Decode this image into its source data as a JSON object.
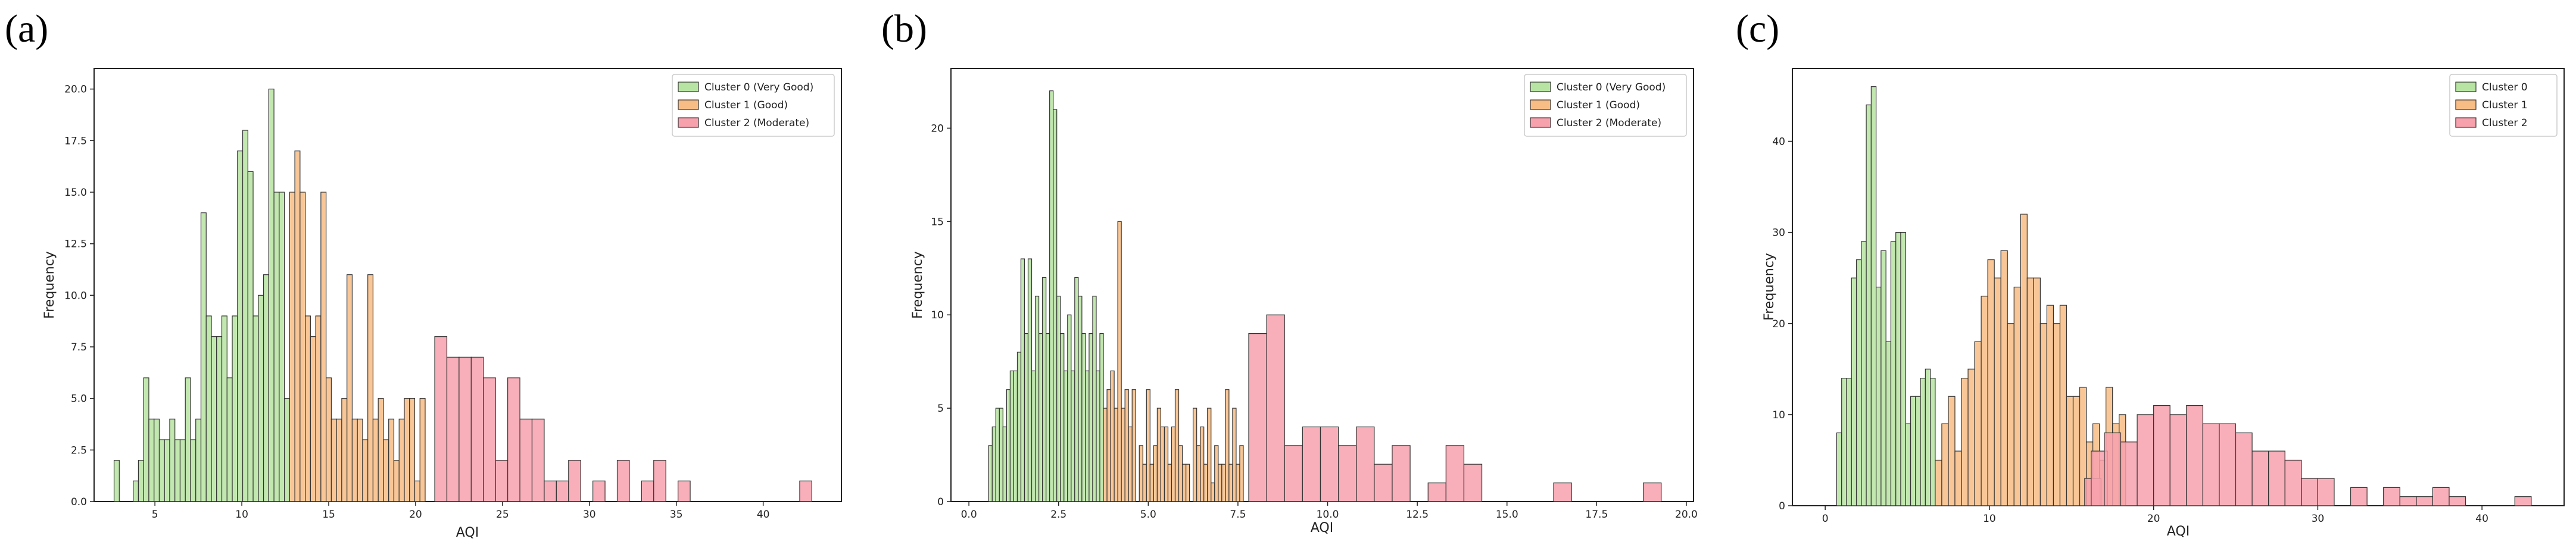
{
  "figure": {
    "panel_labels": [
      "(a)",
      "(b)",
      "(c)"
    ],
    "colors": {
      "cluster0": "#b7e4a2",
      "cluster1": "#f8bd85",
      "cluster2": "#f7a1ad",
      "edge": "#333333"
    }
  },
  "chart_data": [
    {
      "type": "bar",
      "panel": "(a)",
      "xlabel": "AQI",
      "ylabel": "Frequency",
      "xlim": [
        1.5,
        44.5
      ],
      "ylim": [
        0,
        21
      ],
      "xticks": [
        5,
        10,
        15,
        20,
        25,
        30,
        35,
        40
      ],
      "xtick_labels": [
        "5",
        "10",
        "15",
        "20",
        "25",
        "30",
        "35",
        "40"
      ],
      "yticks": [
        0,
        2.5,
        5,
        7.5,
        10,
        12.5,
        15,
        17.5,
        20
      ],
      "ytick_labels": [
        "0.0",
        "2.5",
        "5.0",
        "7.5",
        "10.0",
        "12.5",
        "15.0",
        "17.5",
        "20.0"
      ],
      "legend": {
        "position": "top-right"
      },
      "series": [
        {
          "name": "Cluster 0 (Very Good)",
          "color": "#b7e4a2",
          "bins": [
            [
              2.8,
              2
            ],
            [
              3.9,
              1
            ],
            [
              4.2,
              2
            ],
            [
              4.5,
              6
            ],
            [
              4.8,
              4
            ],
            [
              5.1,
              4
            ],
            [
              5.4,
              3
            ],
            [
              5.7,
              3
            ],
            [
              6.0,
              4
            ],
            [
              6.3,
              3
            ],
            [
              6.6,
              3
            ],
            [
              6.9,
              6
            ],
            [
              7.2,
              3
            ],
            [
              7.5,
              4
            ],
            [
              7.8,
              14
            ],
            [
              8.1,
              9
            ],
            [
              8.4,
              8
            ],
            [
              8.7,
              8
            ],
            [
              9.0,
              9
            ],
            [
              9.3,
              6
            ],
            [
              9.6,
              9
            ],
            [
              9.9,
              17
            ],
            [
              10.2,
              18
            ],
            [
              10.5,
              16
            ],
            [
              10.8,
              9
            ],
            [
              11.1,
              10
            ],
            [
              11.4,
              11
            ],
            [
              11.7,
              20
            ],
            [
              12.0,
              15
            ],
            [
              12.3,
              15
            ],
            [
              12.6,
              5
            ]
          ]
        },
        {
          "name": "Cluster 1 (Good)",
          "color": "#f8bd85",
          "bins": [
            [
              12.9,
              15
            ],
            [
              13.2,
              17
            ],
            [
              13.5,
              15
            ],
            [
              13.8,
              9
            ],
            [
              14.1,
              8
            ],
            [
              14.4,
              9
            ],
            [
              14.7,
              15
            ],
            [
              15.0,
              6
            ],
            [
              15.3,
              4
            ],
            [
              15.6,
              4
            ],
            [
              15.9,
              5
            ],
            [
              16.2,
              11
            ],
            [
              16.5,
              4
            ],
            [
              16.8,
              4
            ],
            [
              17.1,
              3
            ],
            [
              17.4,
              11
            ],
            [
              17.7,
              4
            ],
            [
              18.0,
              5
            ],
            [
              18.3,
              3
            ],
            [
              18.6,
              4
            ],
            [
              18.9,
              2
            ],
            [
              19.2,
              4
            ],
            [
              19.5,
              5
            ],
            [
              19.8,
              5
            ],
            [
              20.1,
              1
            ],
            [
              20.4,
              5
            ]
          ]
        },
        {
          "name": "Cluster 2 (Moderate)",
          "color": "#f7a1ad",
          "bins": [
            [
              21.45,
              8
            ],
            [
              22.15,
              7
            ],
            [
              22.85,
              7
            ],
            [
              23.55,
              7
            ],
            [
              24.25,
              6
            ],
            [
              24.95,
              2
            ],
            [
              25.65,
              6
            ],
            [
              26.35,
              4
            ],
            [
              27.05,
              4
            ],
            [
              27.75,
              1
            ],
            [
              28.45,
              1
            ],
            [
              29.15,
              2
            ],
            [
              30.55,
              1
            ],
            [
              31.95,
              2
            ],
            [
              33.35,
              1
            ],
            [
              34.05,
              2
            ],
            [
              35.45,
              1
            ],
            [
              42.45,
              1
            ]
          ]
        }
      ]
    },
    {
      "type": "bar",
      "panel": "(b)",
      "xlabel": "AQI",
      "ylabel": "Frequency",
      "xlim": [
        -0.5,
        20.2
      ],
      "ylim": [
        0,
        23.2
      ],
      "xticks": [
        0,
        2.5,
        5,
        7.5,
        10,
        12.5,
        15,
        17.5,
        20
      ],
      "xtick_labels": [
        "0.0",
        "2.5",
        "5.0",
        "7.5",
        "10.0",
        "12.5",
        "15.0",
        "17.5",
        "20.0"
      ],
      "yticks": [
        0,
        5,
        10,
        15,
        20
      ],
      "ytick_labels": [
        "0",
        "5",
        "10",
        "15",
        "20"
      ],
      "legend": {
        "position": "top-right"
      },
      "series": [
        {
          "name": "Cluster 0 (Very Good)",
          "color": "#b7e4a2",
          "bins": [
            [
              0.6,
              3
            ],
            [
              0.7,
              4
            ],
            [
              0.8,
              5
            ],
            [
              0.9,
              5
            ],
            [
              1.0,
              4
            ],
            [
              1.1,
              6
            ],
            [
              1.2,
              7
            ],
            [
              1.3,
              7
            ],
            [
              1.4,
              8
            ],
            [
              1.5,
              13
            ],
            [
              1.6,
              9
            ],
            [
              1.7,
              13
            ],
            [
              1.8,
              7
            ],
            [
              1.9,
              11
            ],
            [
              2.0,
              9
            ],
            [
              2.1,
              12
            ],
            [
              2.2,
              9
            ],
            [
              2.3,
              22
            ],
            [
              2.4,
              21
            ],
            [
              2.5,
              11
            ],
            [
              2.6,
              9
            ],
            [
              2.7,
              7
            ],
            [
              2.8,
              10
            ],
            [
              2.9,
              7
            ],
            [
              3.0,
              12
            ],
            [
              3.1,
              11
            ],
            [
              3.2,
              9
            ],
            [
              3.3,
              7
            ],
            [
              3.4,
              9
            ],
            [
              3.5,
              11
            ],
            [
              3.6,
              7
            ],
            [
              3.7,
              9
            ]
          ]
        },
        {
          "name": "Cluster 1 (Good)",
          "color": "#f8bd85",
          "bins": [
            [
              3.8,
              5
            ],
            [
              3.9,
              6
            ],
            [
              4.0,
              7
            ],
            [
              4.1,
              5
            ],
            [
              4.2,
              15
            ],
            [
              4.3,
              5
            ],
            [
              4.4,
              6
            ],
            [
              4.5,
              4
            ],
            [
              4.6,
              6
            ],
            [
              4.8,
              3
            ],
            [
              4.9,
              2
            ],
            [
              5.0,
              6
            ],
            [
              5.1,
              2
            ],
            [
              5.2,
              3
            ],
            [
              5.3,
              5
            ],
            [
              5.4,
              4
            ],
            [
              5.5,
              4
            ],
            [
              5.6,
              2
            ],
            [
              5.7,
              4
            ],
            [
              5.8,
              6
            ],
            [
              5.9,
              3
            ],
            [
              6.0,
              2
            ],
            [
              6.1,
              2
            ],
            [
              6.3,
              5
            ],
            [
              6.4,
              3
            ],
            [
              6.5,
              4
            ],
            [
              6.6,
              2
            ],
            [
              6.7,
              5
            ],
            [
              6.8,
              1
            ],
            [
              6.9,
              3
            ],
            [
              7.0,
              2
            ],
            [
              7.1,
              2
            ],
            [
              7.2,
              6
            ],
            [
              7.3,
              2
            ],
            [
              7.4,
              5
            ],
            [
              7.5,
              2
            ],
            [
              7.6,
              3
            ]
          ]
        },
        {
          "name": "Cluster 2 (Moderate)",
          "color": "#f7a1ad",
          "bins": [
            [
              8.05,
              9
            ],
            [
              8.55,
              10
            ],
            [
              9.05,
              3
            ],
            [
              9.55,
              4
            ],
            [
              10.05,
              4
            ],
            [
              10.55,
              3
            ],
            [
              11.05,
              4
            ],
            [
              11.55,
              2
            ],
            [
              12.05,
              3
            ],
            [
              13.05,
              1
            ],
            [
              13.55,
              3
            ],
            [
              14.05,
              2
            ],
            [
              16.55,
              1
            ],
            [
              19.05,
              1
            ]
          ]
        }
      ]
    },
    {
      "type": "bar",
      "panel": "(c)",
      "xlabel": "AQI",
      "ylabel": "Frequency",
      "xlim": [
        -2,
        45
      ],
      "ylim": [
        0,
        48
      ],
      "xticks": [
        0,
        10,
        20,
        30,
        40
      ],
      "xtick_labels": [
        "0",
        "10",
        "20",
        "30",
        "40"
      ],
      "yticks": [
        0,
        10,
        20,
        30,
        40
      ],
      "ytick_labels": [
        "0",
        "10",
        "20",
        "30",
        "40"
      ],
      "legend": {
        "position": "top-right"
      },
      "series": [
        {
          "name": "Cluster 0",
          "color": "#b7e4a2",
          "bins": [
            [
              0.85,
              8
            ],
            [
              1.15,
              14
            ],
            [
              1.45,
              14
            ],
            [
              1.75,
              25
            ],
            [
              2.05,
              27
            ],
            [
              2.35,
              29
            ],
            [
              2.65,
              44
            ],
            [
              2.95,
              46
            ],
            [
              3.25,
              24
            ],
            [
              3.55,
              28
            ],
            [
              3.85,
              18
            ],
            [
              4.15,
              29
            ],
            [
              4.45,
              30
            ],
            [
              4.75,
              30
            ],
            [
              5.05,
              9
            ],
            [
              5.35,
              12
            ],
            [
              5.65,
              12
            ],
            [
              5.95,
              14
            ],
            [
              6.25,
              15
            ],
            [
              6.55,
              14
            ]
          ]
        },
        {
          "name": "Cluster 1",
          "color": "#f8bd85",
          "bins": [
            [
              6.9,
              5
            ],
            [
              7.3,
              9
            ],
            [
              7.7,
              12
            ],
            [
              8.1,
              6
            ],
            [
              8.5,
              14
            ],
            [
              8.9,
              15
            ],
            [
              9.3,
              18
            ],
            [
              9.7,
              23
            ],
            [
              10.1,
              27
            ],
            [
              10.5,
              25
            ],
            [
              10.9,
              28
            ],
            [
              11.3,
              20
            ],
            [
              11.7,
              24
            ],
            [
              12.1,
              32
            ],
            [
              12.5,
              25
            ],
            [
              12.9,
              25
            ],
            [
              13.3,
              20
            ],
            [
              13.7,
              22
            ],
            [
              14.1,
              20
            ],
            [
              14.5,
              22
            ],
            [
              14.9,
              12
            ],
            [
              15.3,
              12
            ],
            [
              15.7,
              13
            ],
            [
              16.1,
              7
            ],
            [
              16.5,
              9
            ],
            [
              16.9,
              5
            ],
            [
              17.3,
              13
            ],
            [
              17.7,
              9
            ],
            [
              18.1,
              10
            ]
          ]
        },
        {
          "name": "Cluster 2",
          "color": "#f7a1ad",
          "bins": [
            [
              16.3,
              3
            ],
            [
              16.7,
              6
            ],
            [
              17.5,
              8
            ],
            [
              18.5,
              7
            ],
            [
              19.5,
              10
            ],
            [
              20.5,
              11
            ],
            [
              21.5,
              10
            ],
            [
              22.5,
              11
            ],
            [
              23.5,
              9
            ],
            [
              24.5,
              9
            ],
            [
              25.5,
              8
            ],
            [
              26.5,
              6
            ],
            [
              27.5,
              6
            ],
            [
              28.5,
              5
            ],
            [
              29.5,
              3
            ],
            [
              30.5,
              3
            ],
            [
              32.5,
              2
            ],
            [
              34.5,
              2
            ],
            [
              35.5,
              1
            ],
            [
              36.5,
              1
            ],
            [
              37.5,
              2
            ],
            [
              38.5,
              1
            ],
            [
              42.5,
              1
            ]
          ]
        }
      ]
    }
  ]
}
